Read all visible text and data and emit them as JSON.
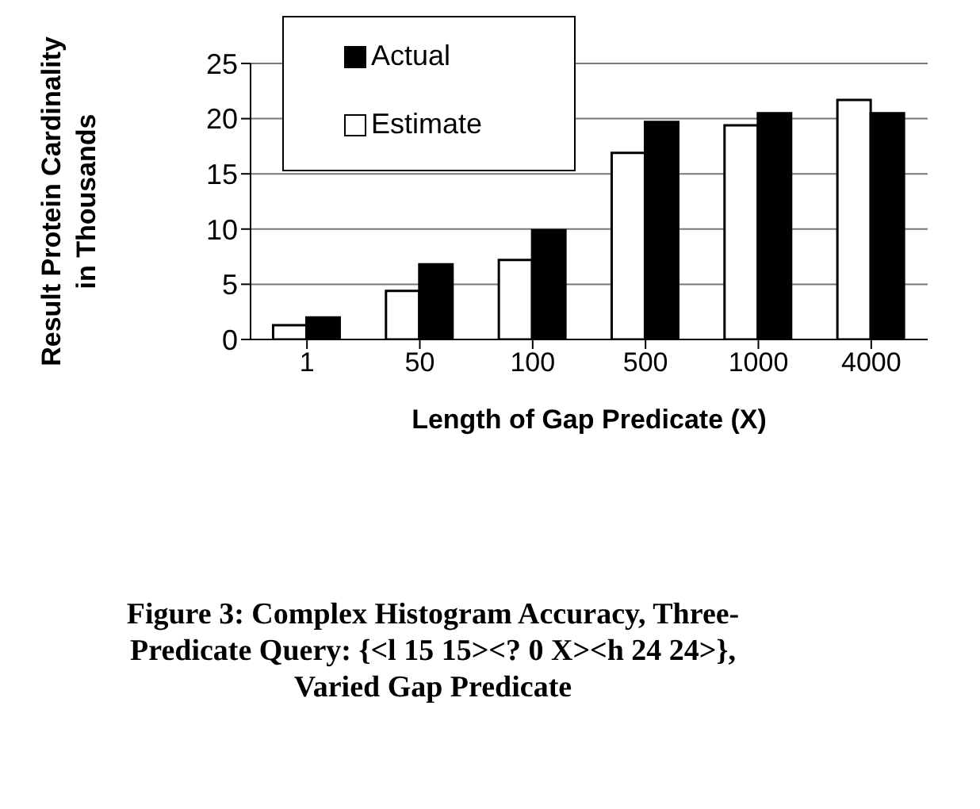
{
  "chart_data": {
    "type": "bar",
    "xlabel": "Length of Gap Predicate (X)",
    "ylabel": "Result Protein Cardinality\nin Thousands",
    "categories": [
      "1",
      "50",
      "100",
      "500",
      "1000",
      "4000"
    ],
    "series": [
      {
        "name": "Estimate",
        "color": "#ffffff",
        "values": [
          1.3,
          4.4,
          7.2,
          16.9,
          19.4,
          21.7
        ]
      },
      {
        "name": "Actual",
        "color": "#000000",
        "values": [
          2.0,
          6.8,
          9.9,
          19.7,
          20.5,
          20.5
        ]
      }
    ],
    "ylim": [
      0,
      25
    ],
    "yticks": [
      0,
      5,
      10,
      15,
      20,
      25
    ],
    "grid": "y",
    "legend": "top left",
    "annotations": [
      "Figure 3:  Complex Histogram Accuracy, Three-Predicate Query:  {<l 15 15><? 0 X><h 24 24>}, Varied Gap Predicate"
    ]
  }
}
